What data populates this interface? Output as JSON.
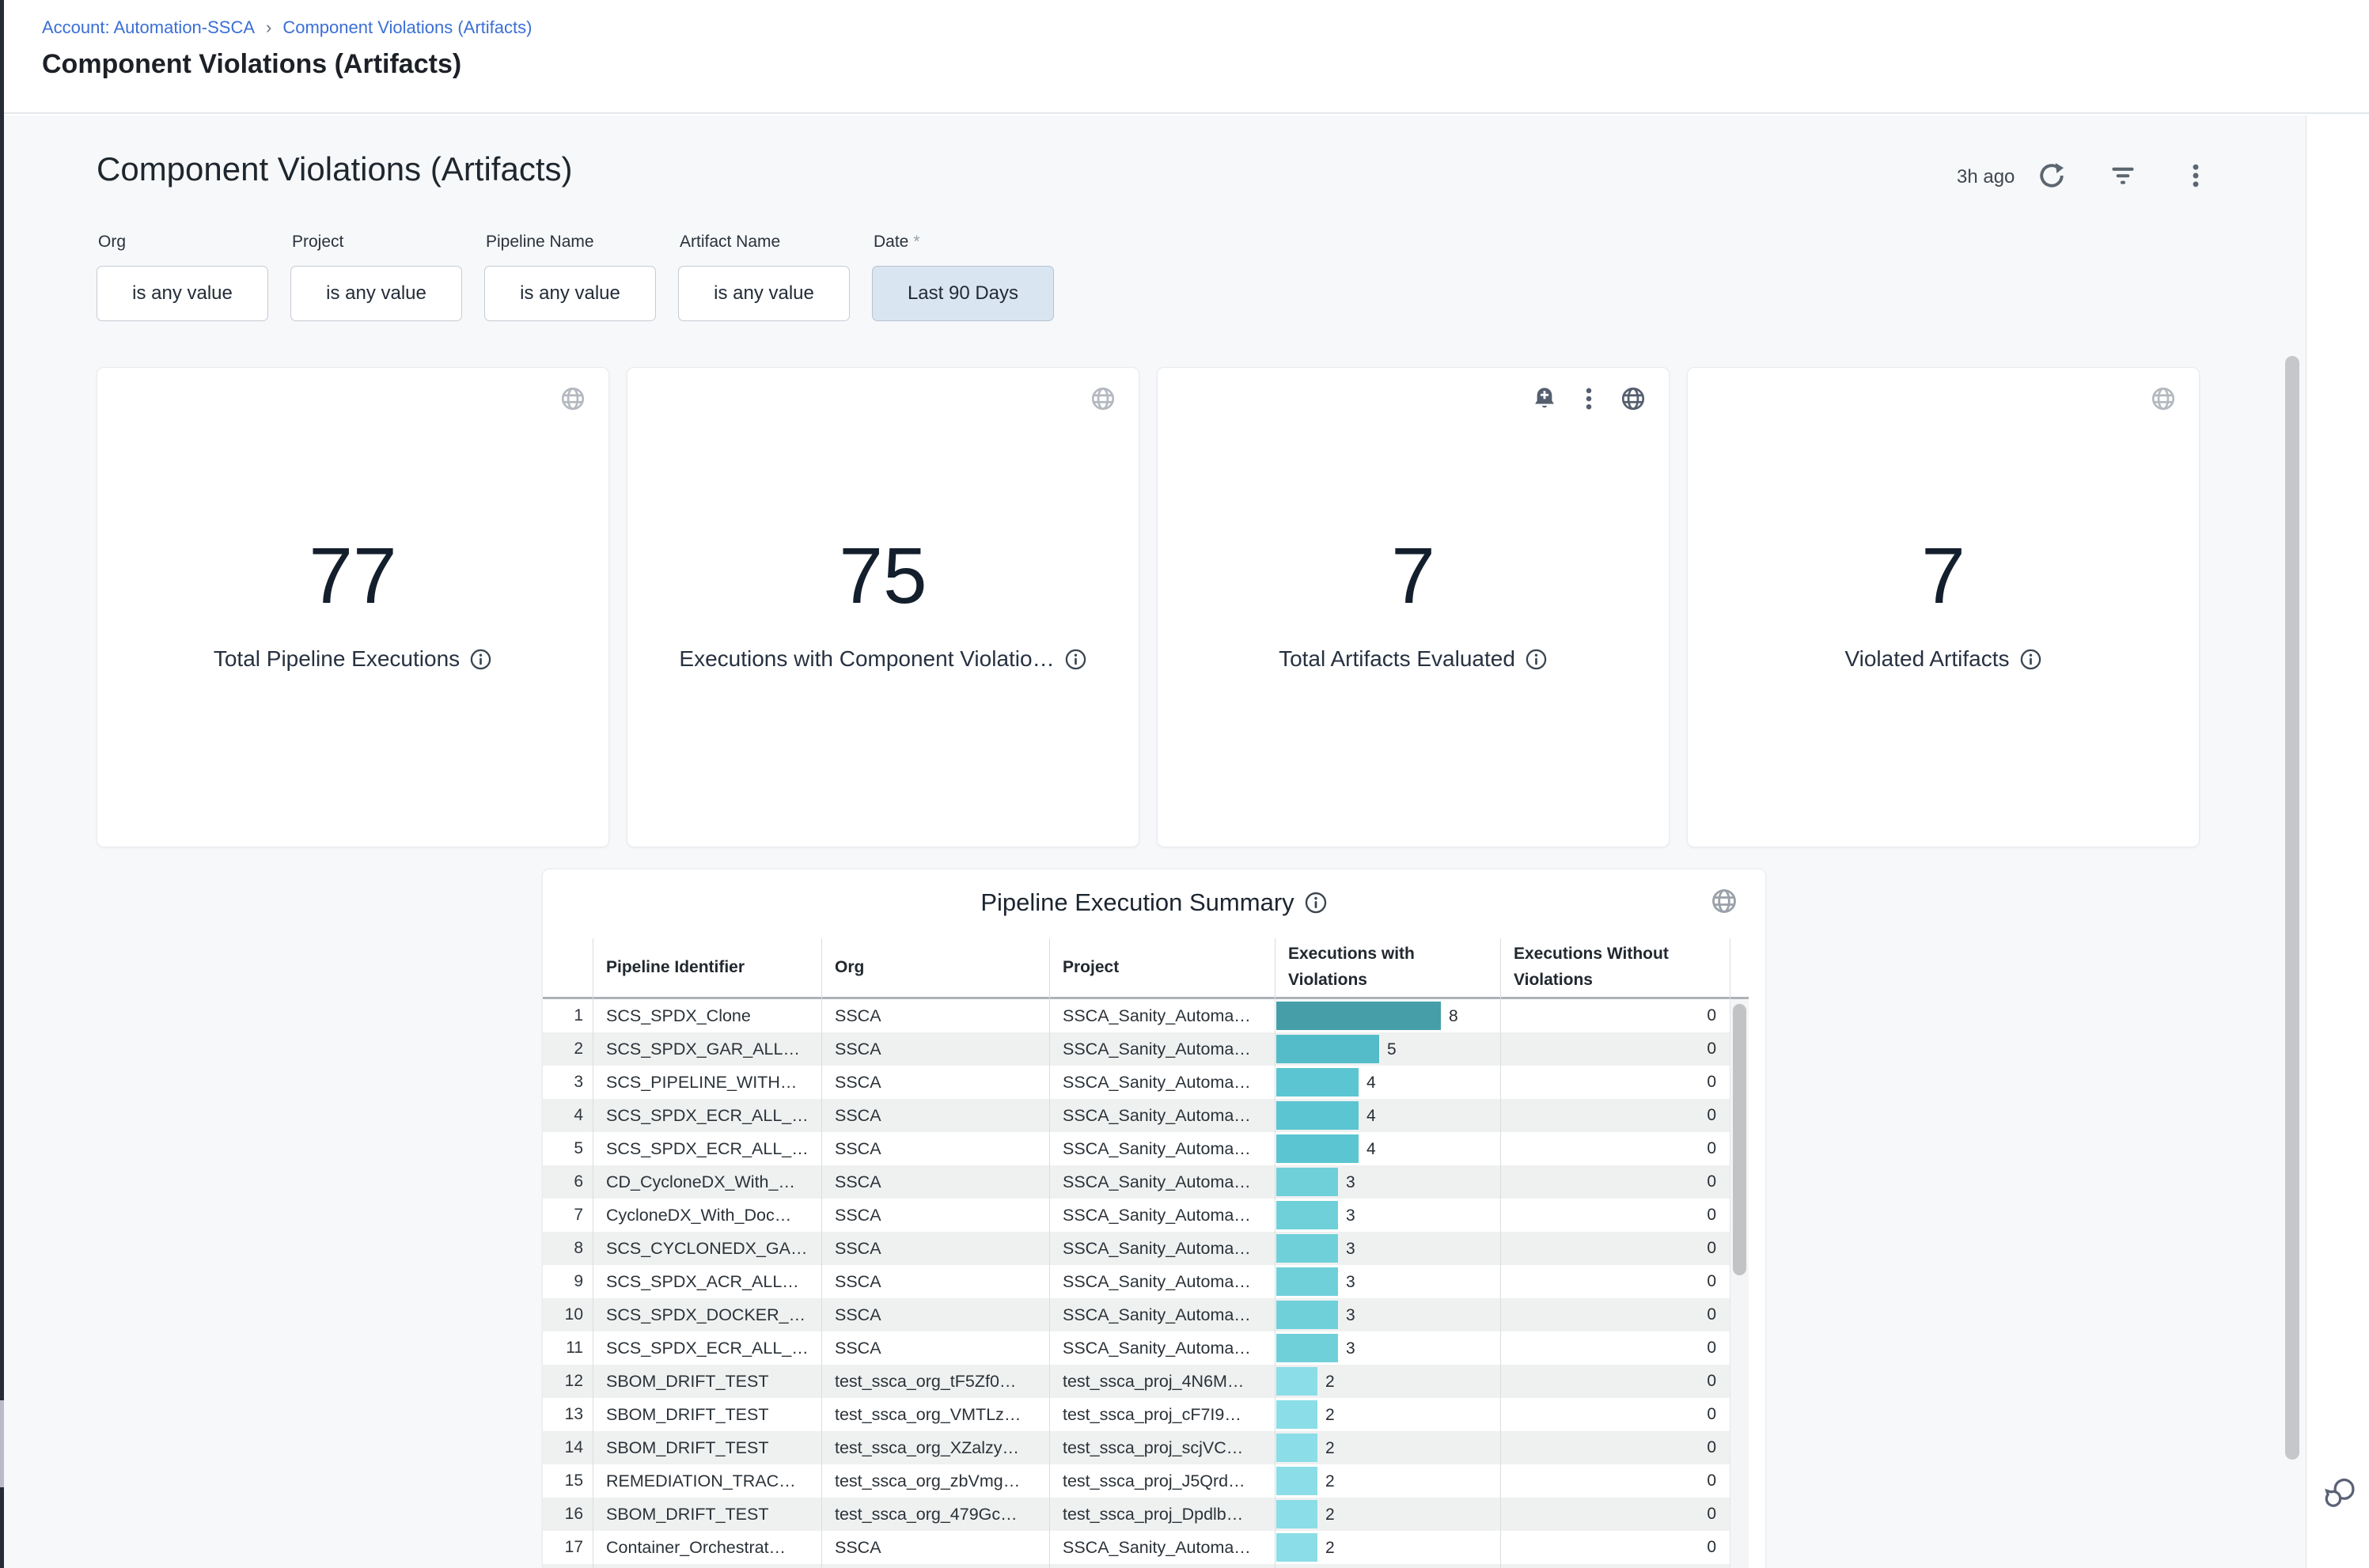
{
  "breadcrumb": {
    "account_link": "Account: Automation-SSCA",
    "separator": "›",
    "current_link": "Component Violations (Artifacts)"
  },
  "page": {
    "title": "Component Violations (Artifacts)"
  },
  "dashboard": {
    "title": "Component Violations (Artifacts)",
    "last_refresh": "3h ago",
    "header_icons": [
      "refresh-icon",
      "filter-icon",
      "kebab-menu-icon"
    ],
    "filters": [
      {
        "label": "Org",
        "required_marker": "",
        "value": "is any value",
        "active": false
      },
      {
        "label": "Project",
        "required_marker": "",
        "value": "is any value",
        "active": false
      },
      {
        "label": "Pipeline Name",
        "required_marker": "",
        "value": "is any value",
        "active": false
      },
      {
        "label": "Artifact Name",
        "required_marker": "",
        "value": "is any value",
        "active": false
      },
      {
        "label": "Date",
        "required_marker": "*",
        "value": "Last 90 Days",
        "active": true
      }
    ],
    "active_filter_bg": "#dae5f2",
    "link_color": "#3b6fd6",
    "tiles": [
      {
        "value": "77",
        "label": "Total Pipeline Executions",
        "header_icons": [
          "globe-icon"
        ]
      },
      {
        "value": "75",
        "label": "Executions with Component Violatio…",
        "header_icons": [
          "globe-icon"
        ]
      },
      {
        "value": "7",
        "label": "Total Artifacts Evaluated",
        "header_icons": [
          "bell-plus-icon",
          "kebab-menu-icon",
          "globe-icon"
        ]
      },
      {
        "value": "7",
        "label": "Violated Artifacts",
        "header_icons": [
          "globe-icon"
        ]
      }
    ]
  },
  "table": {
    "title": "Pipeline Execution Summary",
    "columns": [
      "Pipeline Identifier",
      "Org",
      "Project",
      "Executions with Violations",
      "Executions Without Violations"
    ],
    "bar_colors_by_value": {
      "8": "#469fa8",
      "5": "#54bcc8",
      "4": "#5bc5d1",
      "3": "#6fd0da",
      "2": "#8bdde7"
    },
    "bar_max": 8,
    "rows": [
      {
        "index": 1,
        "pipeline": "SCS_SPDX_Clone",
        "org": "SSCA",
        "project": "SSCA_Sanity_Automa…",
        "executions_with_violations": 8,
        "executions_without_violations": 0
      },
      {
        "index": 2,
        "pipeline": "SCS_SPDX_GAR_ALL…",
        "org": "SSCA",
        "project": "SSCA_Sanity_Automa…",
        "executions_with_violations": 5,
        "executions_without_violations": 0
      },
      {
        "index": 3,
        "pipeline": "SCS_PIPELINE_WITH…",
        "org": "SSCA",
        "project": "SSCA_Sanity_Automa…",
        "executions_with_violations": 4,
        "executions_without_violations": 0
      },
      {
        "index": 4,
        "pipeline": "SCS_SPDX_ECR_ALL_…",
        "org": "SSCA",
        "project": "SSCA_Sanity_Automa…",
        "executions_with_violations": 4,
        "executions_without_violations": 0
      },
      {
        "index": 5,
        "pipeline": "SCS_SPDX_ECR_ALL_…",
        "org": "SSCA",
        "project": "SSCA_Sanity_Automa…",
        "executions_with_violations": 4,
        "executions_without_violations": 0
      },
      {
        "index": 6,
        "pipeline": "CD_CycloneDX_With_…",
        "org": "SSCA",
        "project": "SSCA_Sanity_Automa…",
        "executions_with_violations": 3,
        "executions_without_violations": 0
      },
      {
        "index": 7,
        "pipeline": "CycloneDX_With_Doc…",
        "org": "SSCA",
        "project": "SSCA_Sanity_Automa…",
        "executions_with_violations": 3,
        "executions_without_violations": 0
      },
      {
        "index": 8,
        "pipeline": "SCS_CYCLONEDX_GA…",
        "org": "SSCA",
        "project": "SSCA_Sanity_Automa…",
        "executions_with_violations": 3,
        "executions_without_violations": 0
      },
      {
        "index": 9,
        "pipeline": "SCS_SPDX_ACR_ALL…",
        "org": "SSCA",
        "project": "SSCA_Sanity_Automa…",
        "executions_with_violations": 3,
        "executions_without_violations": 0
      },
      {
        "index": 10,
        "pipeline": "SCS_SPDX_DOCKER_…",
        "org": "SSCA",
        "project": "SSCA_Sanity_Automa…",
        "executions_with_violations": 3,
        "executions_without_violations": 0
      },
      {
        "index": 11,
        "pipeline": "SCS_SPDX_ECR_ALL_…",
        "org": "SSCA",
        "project": "SSCA_Sanity_Automa…",
        "executions_with_violations": 3,
        "executions_without_violations": 0
      },
      {
        "index": 12,
        "pipeline": "SBOM_DRIFT_TEST",
        "org": "test_ssca_org_tF5Zf0…",
        "project": "test_ssca_proj_4N6M…",
        "executions_with_violations": 2,
        "executions_without_violations": 0
      },
      {
        "index": 13,
        "pipeline": "SBOM_DRIFT_TEST",
        "org": "test_ssca_org_VMTLz…",
        "project": "test_ssca_proj_cF7I9…",
        "executions_with_violations": 2,
        "executions_without_violations": 0
      },
      {
        "index": 14,
        "pipeline": "SBOM_DRIFT_TEST",
        "org": "test_ssca_org_XZalzy…",
        "project": "test_ssca_proj_scjVC…",
        "executions_with_violations": 2,
        "executions_without_violations": 0
      },
      {
        "index": 15,
        "pipeline": "REMEDIATION_TRAC…",
        "org": "test_ssca_org_zbVmg…",
        "project": "test_ssca_proj_J5Qrd…",
        "executions_with_violations": 2,
        "executions_without_violations": 0
      },
      {
        "index": 16,
        "pipeline": "SBOM_DRIFT_TEST",
        "org": "test_ssca_org_479Gc…",
        "project": "test_ssca_proj_Dpdlb…",
        "executions_with_violations": 2,
        "executions_without_violations": 0
      },
      {
        "index": 17,
        "pipeline": "Container_Orchestrat…",
        "org": "SSCA",
        "project": "SSCA_Sanity_Automa…",
        "executions_with_violations": 2,
        "executions_without_violations": 0
      }
    ]
  }
}
